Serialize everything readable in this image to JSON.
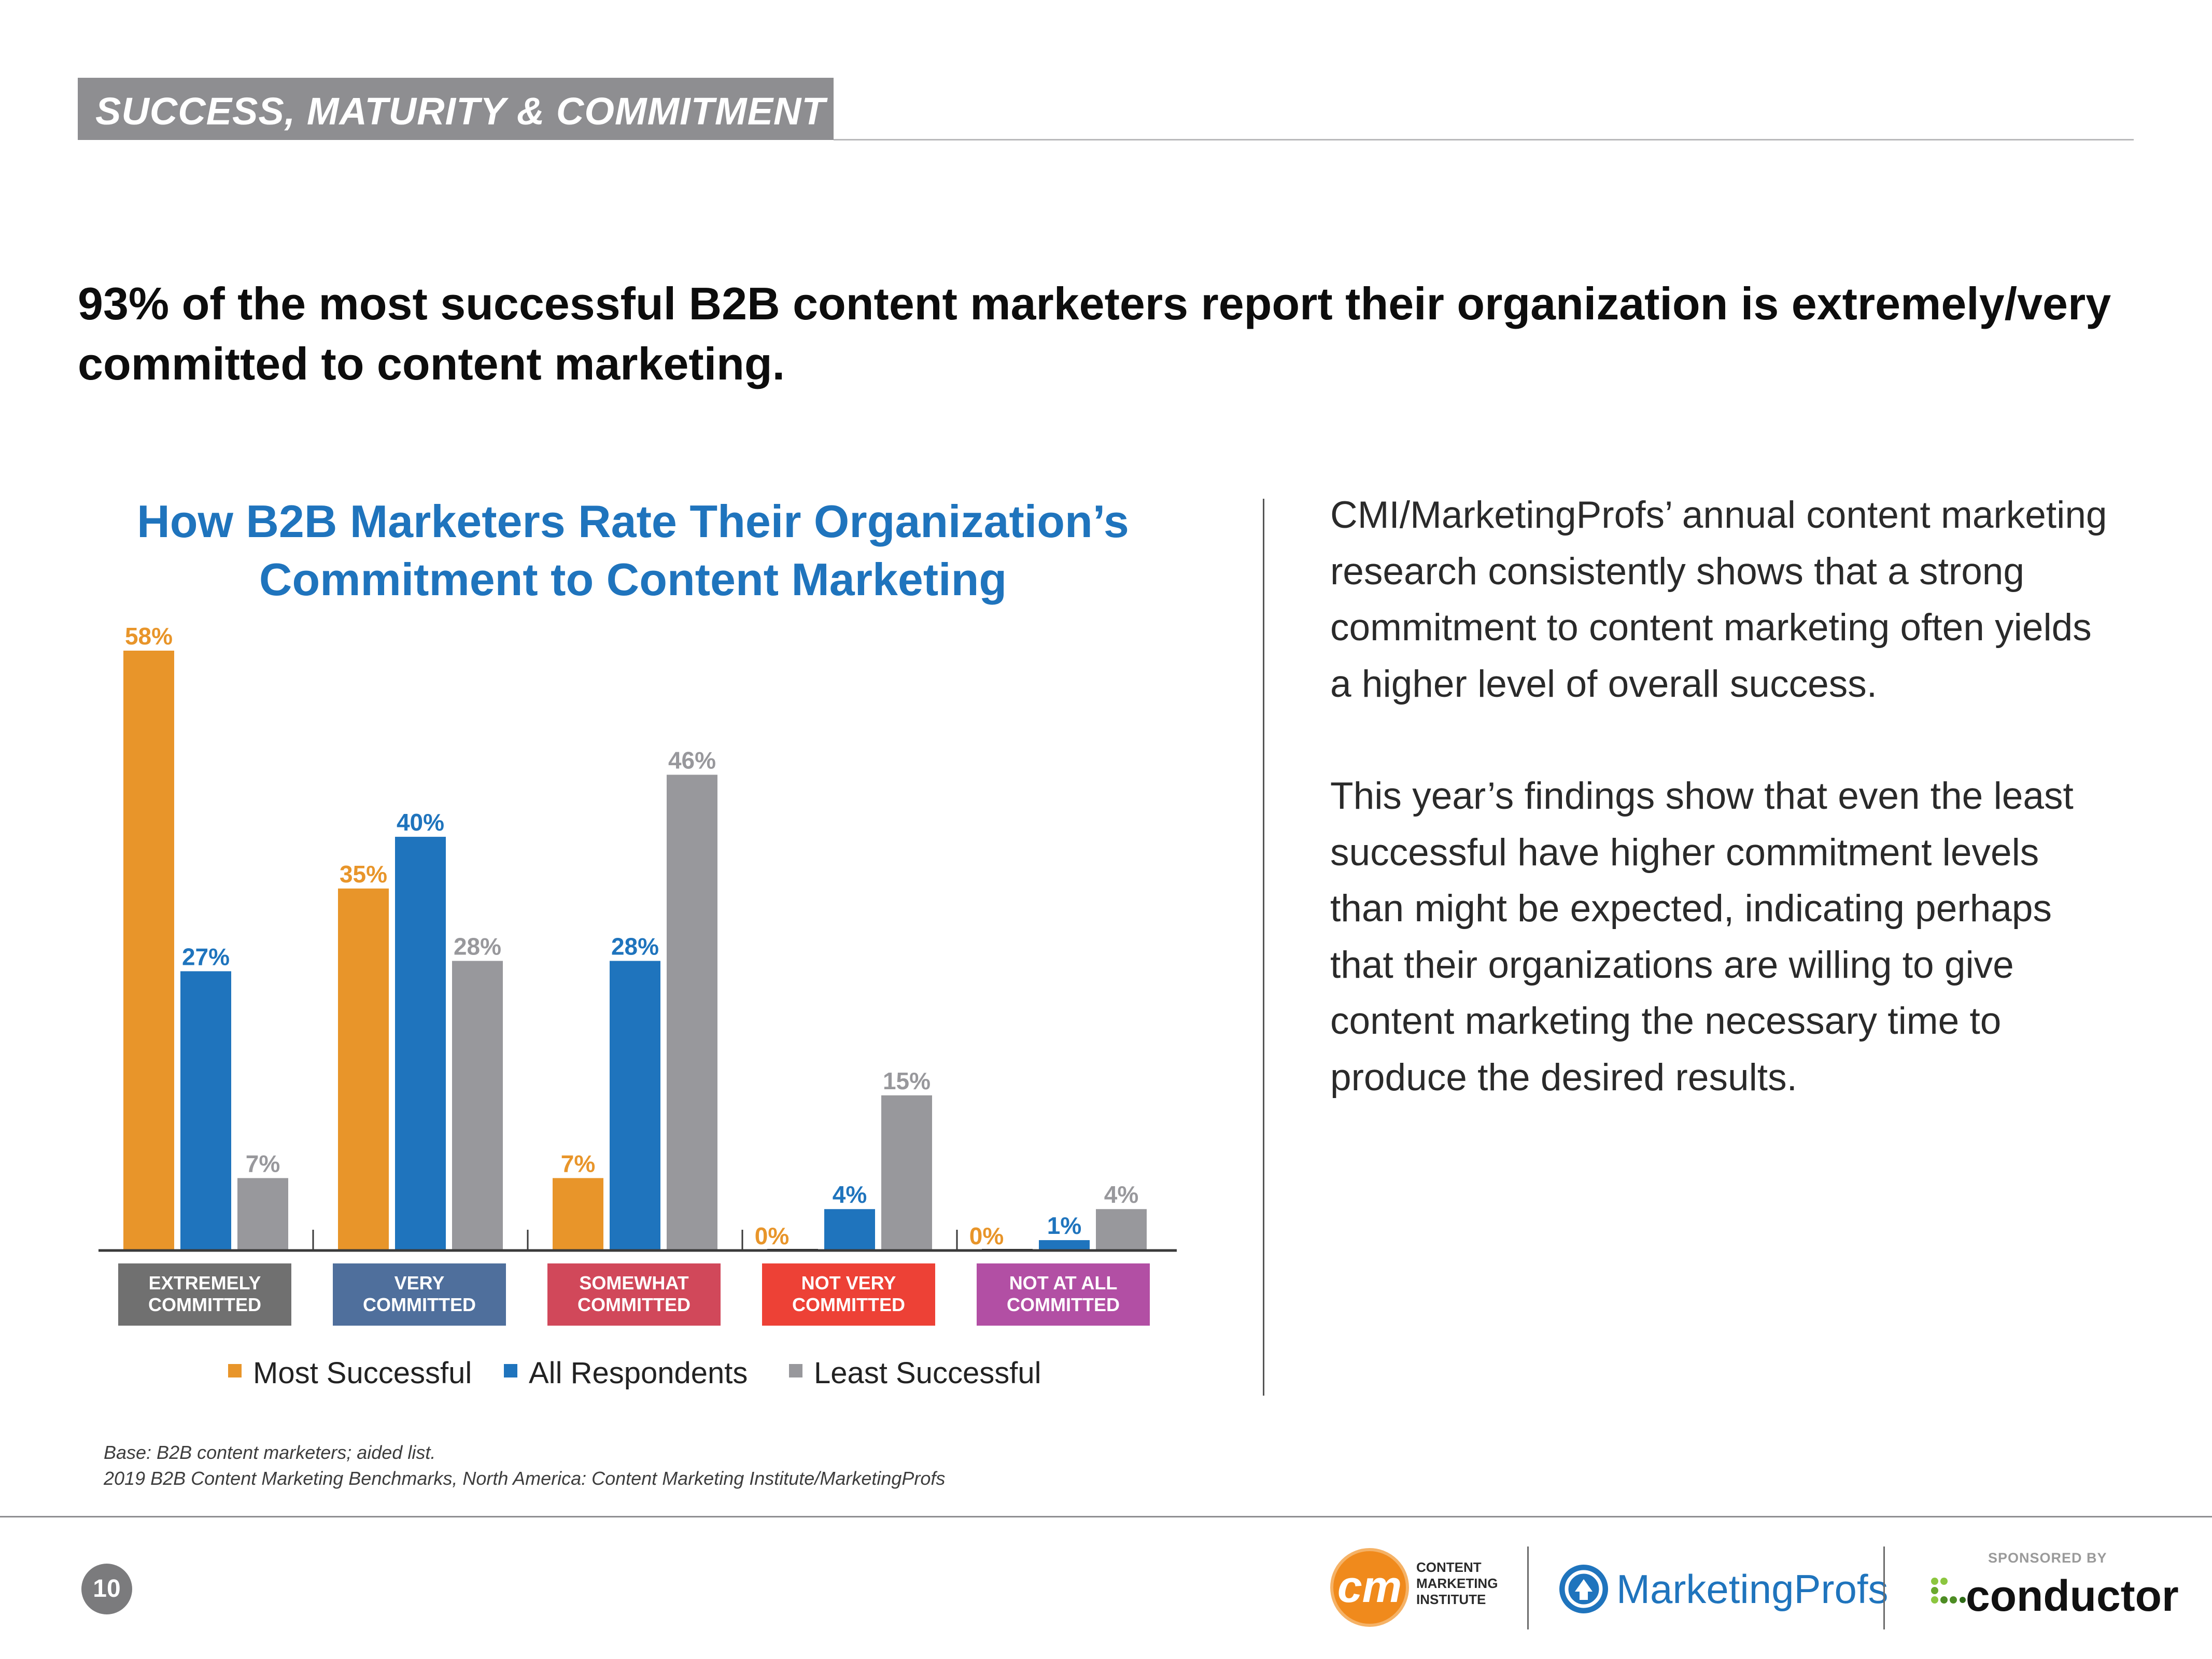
{
  "section": {
    "title": "SUCCESS, MATURITY & COMMITMENT"
  },
  "headline": "93% of the most successful B2B content marketers report their organization is extremely/very committed to content marketing.",
  "chart_data": {
    "type": "bar",
    "title": "How B2B Marketers Rate Their Organization’s Commitment to Content Marketing",
    "categories": [
      "EXTREMELY COMMITTED",
      "VERY COMMITTED",
      "SOMEWHAT COMMITTED",
      "NOT VERY COMMITTED",
      "NOT AT ALL COMMITTED"
    ],
    "category_lines": [
      [
        "EXTREMELY",
        "COMMITTED"
      ],
      [
        "VERY",
        "COMMITTED"
      ],
      [
        "SOMEWHAT",
        "COMMITTED"
      ],
      [
        "NOT VERY",
        "COMMITTED"
      ],
      [
        "NOT AT ALL",
        "COMMITTED"
      ]
    ],
    "category_colors": [
      "#707070",
      "#4f6f9c",
      "#d1485a",
      "#ed4136",
      "#b24fa4"
    ],
    "series": [
      {
        "name": "Most Successful",
        "values": [
          58,
          35,
          7,
          0,
          0
        ],
        "labels": [
          "58%",
          "35%",
          "7%",
          "0%",
          "0%"
        ],
        "color": "#e8952a"
      },
      {
        "name": "All Respondents",
        "values": [
          27,
          40,
          28,
          4,
          1
        ],
        "labels": [
          "27%",
          "40%",
          "28%",
          "4%",
          "1%"
        ],
        "color": "#1f74bd"
      },
      {
        "name": "Least Successful",
        "values": [
          7,
          28,
          46,
          15,
          4
        ],
        "labels": [
          "7%",
          "28%",
          "46%",
          "15%",
          "4%"
        ],
        "color": "#98989c"
      }
    ],
    "ylim": [
      0,
      58
    ],
    "xlabel": "",
    "ylabel": "",
    "grid": false,
    "legend": "bottom-center"
  },
  "prose": {
    "paragraph1": "CMI/MarketingProfs’ annual content marketing research consistently shows that a strong commitment to content marketing often yields a higher level of overall success.",
    "paragraph2": "This year’s findings show that even the least successful have higher commitment levels than might be expected, indicating perhaps that their organizations are willing to give content marketing the necessary time to produce the desired results."
  },
  "footnote": {
    "base": "Base: B2B content marketers; aided list.",
    "source": "2019 B2B Content Marketing Benchmarks, North America: Content Marketing Institute/MarketingProfs"
  },
  "footer": {
    "page_number": "10",
    "cmi_mark": "cm",
    "cmi_text_line1": "CONTENT",
    "cmi_text_line2": "MARKETING",
    "cmi_text_line3": "INSTITUTE",
    "marketingprofs": "MarketingProfs",
    "sponsored_by": "SPONSORED BY",
    "conductor": "conductor"
  }
}
